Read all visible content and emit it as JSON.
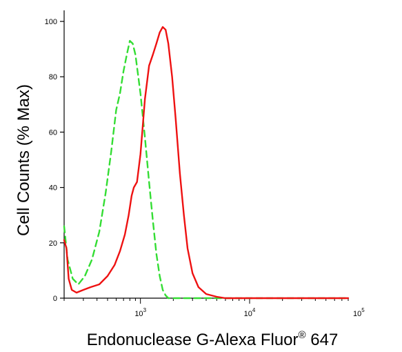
{
  "chart_data": {
    "type": "line",
    "title": "",
    "xlabel": "Endonuclease G-Alexa Fluor",
    "xlabel_superscript": "®",
    "xlabel_suffix": " 647",
    "ylabel": "Cell Counts (% Max)",
    "x_scale": "log",
    "xlim": [
      200,
      80000
    ],
    "ylim": [
      0,
      104
    ],
    "grid": false,
    "legend": "none",
    "y_ticks": [
      {
        "value": 0,
        "label": "0"
      },
      {
        "value": 20,
        "label": "20"
      },
      {
        "value": 40,
        "label": "40"
      },
      {
        "value": 60,
        "label": "60"
      },
      {
        "value": 80,
        "label": "80"
      },
      {
        "value": 100,
        "label": "100"
      }
    ],
    "x_ticks": [
      {
        "value": 1000,
        "base": "10",
        "exp": "3"
      },
      {
        "value": 10000,
        "base": "10",
        "exp": "4"
      },
      {
        "value": 100000,
        "base": "10",
        "exp": "5"
      }
    ],
    "series": [
      {
        "color": "#33dd33",
        "dash": "dashed",
        "points": [
          [
            200,
            26
          ],
          [
            215,
            14
          ],
          [
            240,
            7
          ],
          [
            270,
            5
          ],
          [
            310,
            8
          ],
          [
            360,
            14
          ],
          [
            420,
            24
          ],
          [
            480,
            38
          ],
          [
            540,
            53
          ],
          [
            600,
            68
          ],
          [
            650,
            74
          ],
          [
            700,
            82
          ],
          [
            750,
            88
          ],
          [
            800,
            93
          ],
          [
            850,
            92
          ],
          [
            900,
            88
          ],
          [
            1000,
            74
          ],
          [
            1100,
            58
          ],
          [
            1200,
            42
          ],
          [
            1300,
            28
          ],
          [
            1400,
            16
          ],
          [
            1500,
            8
          ],
          [
            1600,
            3
          ],
          [
            1700,
            1
          ],
          [
            1800,
            0
          ],
          [
            80000,
            0
          ]
        ]
      },
      {
        "color": "#ee1111",
        "dash": "solid",
        "points": [
          [
            200,
            21
          ],
          [
            210,
            18
          ],
          [
            220,
            7
          ],
          [
            235,
            3
          ],
          [
            260,
            2
          ],
          [
            300,
            3
          ],
          [
            350,
            4
          ],
          [
            420,
            5
          ],
          [
            500,
            8
          ],
          [
            580,
            12
          ],
          [
            650,
            17
          ],
          [
            720,
            23
          ],
          [
            780,
            30
          ],
          [
            830,
            37
          ],
          [
            870,
            40
          ],
          [
            930,
            42
          ],
          [
            1000,
            52
          ],
          [
            1100,
            72
          ],
          [
            1200,
            84
          ],
          [
            1300,
            88
          ],
          [
            1400,
            92
          ],
          [
            1500,
            96
          ],
          [
            1600,
            98
          ],
          [
            1700,
            97
          ],
          [
            1800,
            92
          ],
          [
            1950,
            80
          ],
          [
            2100,
            65
          ],
          [
            2300,
            45
          ],
          [
            2500,
            30
          ],
          [
            2700,
            18
          ],
          [
            3000,
            9
          ],
          [
            3400,
            4
          ],
          [
            4000,
            1.5
          ],
          [
            5000,
            0.5
          ],
          [
            6000,
            0
          ],
          [
            80000,
            0
          ]
        ]
      }
    ]
  }
}
